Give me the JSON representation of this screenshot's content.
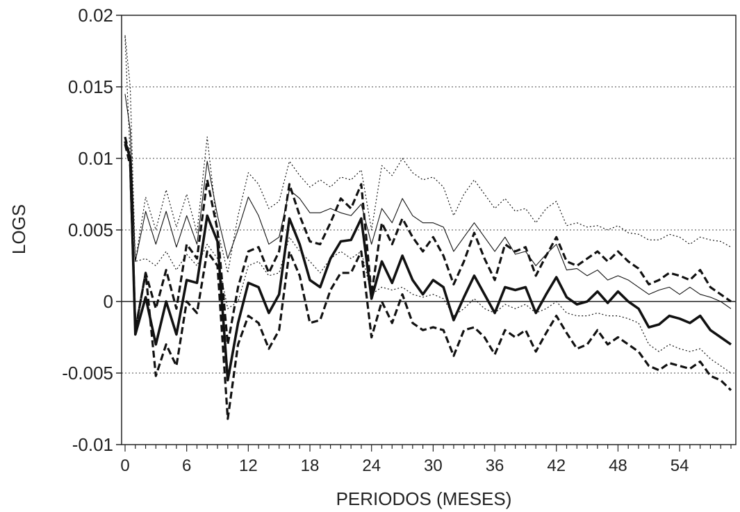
{
  "chart_data": {
    "type": "line",
    "title": "",
    "xlabel": "PERIODOS (MESES)",
    "ylabel": "LOGS",
    "xlim": [
      0,
      59
    ],
    "ylim": [
      -0.01,
      0.02
    ],
    "yticks": [
      0.02,
      0.015,
      0.01,
      0.005,
      0,
      -0.005,
      -0.01
    ],
    "ytick_labels": [
      "0.02",
      "0.015",
      "0.01",
      "0.005",
      "0",
      "-0.005",
      "-0.01"
    ],
    "xticks": [
      0,
      6,
      12,
      18,
      24,
      30,
      36,
      42,
      48,
      54
    ],
    "xtick_labels": [
      "0",
      "6",
      "12",
      "18",
      "24",
      "30",
      "36",
      "42",
      "48",
      "54"
    ],
    "grid": "horizontal-dotted",
    "legend": "none",
    "x": [
      0,
      0.5,
      1,
      2,
      3,
      4,
      5,
      6,
      7,
      8,
      9,
      10,
      11,
      12,
      13,
      14,
      15,
      16,
      17,
      18,
      19,
      20,
      21,
      22,
      23,
      24,
      25,
      26,
      27,
      28,
      29,
      30,
      31,
      32,
      33,
      34,
      35,
      36,
      37,
      38,
      39,
      40,
      41,
      42,
      43,
      44,
      45,
      46,
      47,
      48,
      49,
      50,
      51,
      52,
      53,
      54,
      55,
      56,
      57,
      58,
      59
    ],
    "series": [
      {
        "style": "thin-dotted",
        "values": [
          0.0186,
          0.015,
          0.0028,
          0.0073,
          0.005,
          0.0078,
          0.0052,
          0.0075,
          0.0048,
          0.0115,
          0.005,
          0.002,
          0.006,
          0.009,
          0.0082,
          0.0065,
          0.007,
          0.0098,
          0.0088,
          0.008,
          0.0085,
          0.008,
          0.0087,
          0.0085,
          0.0092,
          0.005,
          0.0095,
          0.0088,
          0.01,
          0.009,
          0.0085,
          0.0087,
          0.008,
          0.006,
          0.0075,
          0.0085,
          0.0075,
          0.0065,
          0.0072,
          0.0063,
          0.0065,
          0.0055,
          0.0065,
          0.007,
          0.0053,
          0.0055,
          0.0052,
          0.0053,
          0.005,
          0.0053,
          0.0048,
          0.0047,
          0.0043,
          0.0043,
          0.0047,
          0.0045,
          0.004,
          0.0045,
          0.0043,
          0.0042,
          0.0038
        ]
      },
      {
        "style": "thin-solid",
        "values": [
          0.0145,
          0.012,
          0.0028,
          0.0063,
          0.004,
          0.0063,
          0.0038,
          0.006,
          0.004,
          0.0098,
          0.006,
          0.003,
          0.005,
          0.0073,
          0.006,
          0.004,
          0.0045,
          0.0078,
          0.0072,
          0.0062,
          0.0062,
          0.0065,
          0.0062,
          0.006,
          0.0068,
          0.004,
          0.0065,
          0.0055,
          0.0072,
          0.006,
          0.0055,
          0.0055,
          0.0052,
          0.0035,
          0.0045,
          0.0055,
          0.0045,
          0.0035,
          0.0045,
          0.0033,
          0.0035,
          0.0025,
          0.0033,
          0.004,
          0.0022,
          0.0023,
          0.0018,
          0.0022,
          0.0015,
          0.0018,
          0.0015,
          0.001,
          0.0005,
          0.0008,
          0.001,
          0.0005,
          0.001,
          0.0005,
          0.0003,
          0.0,
          -0.0005
        ]
      },
      {
        "style": "thick-dashed",
        "values": [
          0.0115,
          0.01,
          -0.002,
          0.002,
          -0.0005,
          0.0022,
          -0.0005,
          0.004,
          0.003,
          0.0085,
          0.005,
          -0.003,
          0.001,
          0.0035,
          0.0038,
          0.002,
          0.0035,
          0.0082,
          0.006,
          0.0042,
          0.004,
          0.0055,
          0.0072,
          0.0065,
          0.0082,
          0.0005,
          0.0055,
          0.004,
          0.0058,
          0.0045,
          0.0035,
          0.0045,
          0.0032,
          0.0012,
          0.0028,
          0.0048,
          0.003,
          0.0015,
          0.004,
          0.0035,
          0.0038,
          0.0018,
          0.0032,
          0.0045,
          0.0028,
          0.0025,
          0.003,
          0.0035,
          0.0028,
          0.0035,
          0.0028,
          0.0023,
          0.0012,
          0.0015,
          0.002,
          0.0018,
          0.0015,
          0.0022,
          0.001,
          0.0005,
          0.0
        ]
      },
      {
        "style": "thick-solid",
        "values": [
          0.0112,
          0.01,
          -0.0023,
          0.0003,
          -0.003,
          0.0,
          -0.0023,
          0.0015,
          0.0013,
          0.006,
          0.0042,
          -0.0055,
          -0.0015,
          0.0013,
          0.001,
          -0.0008,
          0.0005,
          0.0058,
          0.004,
          0.0015,
          0.001,
          0.003,
          0.0042,
          0.0043,
          0.0058,
          0.0002,
          0.0028,
          0.0013,
          0.0032,
          0.0015,
          0.0005,
          0.0015,
          0.001,
          -0.0013,
          0.0003,
          0.0018,
          0.0005,
          -0.0008,
          0.001,
          0.0008,
          0.001,
          -0.0008,
          0.0005,
          0.0017,
          0.0003,
          -0.0002,
          0.0,
          0.0007,
          -0.0001,
          0.0007,
          0.0,
          -0.0005,
          -0.0018,
          -0.0016,
          -0.001,
          -0.0012,
          -0.0015,
          -0.001,
          -0.002,
          -0.0025,
          -0.003
        ]
      },
      {
        "style": "thick-dashed",
        "values": [
          0.011,
          0.0095,
          -0.002,
          0.002,
          -0.0052,
          -0.003,
          -0.0045,
          0.0,
          -0.0008,
          0.0035,
          0.0025,
          -0.0082,
          -0.003,
          -0.001,
          -0.0015,
          -0.0033,
          -0.002,
          0.0035,
          0.0018,
          -0.0015,
          -0.0013,
          0.0008,
          0.002,
          0.002,
          0.0035,
          -0.0025,
          0.0,
          -0.0015,
          0.0005,
          -0.0015,
          -0.002,
          -0.0018,
          -0.002,
          -0.0038,
          -0.002,
          -0.0018,
          -0.0025,
          -0.0037,
          -0.002,
          -0.0025,
          -0.002,
          -0.0035,
          -0.0022,
          -0.001,
          -0.0022,
          -0.0033,
          -0.003,
          -0.002,
          -0.003,
          -0.0025,
          -0.003,
          -0.0035,
          -0.0045,
          -0.0048,
          -0.0043,
          -0.0045,
          -0.0047,
          -0.0042,
          -0.0052,
          -0.0055,
          -0.0062
        ]
      },
      {
        "style": "thin-dotted",
        "values": [
          0.0185,
          0.01,
          0.0028,
          0.003,
          0.0025,
          0.0035,
          0.0022,
          0.0033,
          0.0025,
          0.004,
          0.003,
          -0.0005,
          0.0,
          0.0025,
          0.0028,
          0.0018,
          0.002,
          0.0045,
          0.0035,
          0.0028,
          0.002,
          0.003,
          0.0035,
          0.003,
          0.0035,
          0.0005,
          0.001,
          0.0008,
          0.001,
          0.0005,
          0.0003,
          0.0005,
          0.0002,
          -0.001,
          -0.0005,
          0.0002,
          -0.0005,
          -0.0008,
          -0.0002,
          -0.0005,
          -0.0002,
          -0.0008,
          -0.0005,
          0.0,
          -0.0008,
          -0.001,
          -0.001,
          -0.0008,
          -0.001,
          -0.001,
          -0.0012,
          -0.0015,
          -0.003,
          -0.0035,
          -0.003,
          -0.0033,
          -0.0035,
          -0.0033,
          -0.004,
          -0.0045,
          -0.005
        ]
      }
    ]
  }
}
